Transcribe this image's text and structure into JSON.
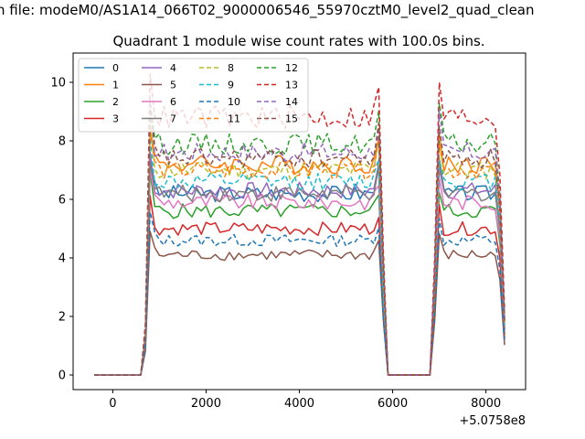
{
  "chart_data": {
    "type": "line",
    "suptitle": "n file: modeM0/AS1A14_066T02_9000006546_55970cztM0_level2_quad_clean",
    "title": "Quadrant 1 module wise count rates with 100.0s bins.",
    "xlabel": "",
    "ylabel": "",
    "x_offset_label": "+5.0758e8",
    "xlim": [
      -850,
      8850
    ],
    "ylim": [
      -0.5,
      11.0
    ],
    "xticks": [
      0,
      2000,
      4000,
      6000,
      8000
    ],
    "xtick_labels": [
      "0",
      "2000",
      "4000",
      "6000",
      "8000"
    ],
    "yticks": [
      0,
      2,
      4,
      6,
      8,
      10
    ],
    "ytick_labels": [
      "0",
      "2",
      "4",
      "6",
      "8",
      "10"
    ],
    "legend": {
      "placement": "top-left",
      "ncol": 4
    },
    "profile": {
      "x": [
        -400,
        -300,
        -200,
        -100,
        0,
        100,
        200,
        300,
        400,
        500,
        600,
        700,
        800,
        900,
        1000,
        1100,
        1200,
        1300,
        1400,
        1500,
        1600,
        1700,
        1800,
        1900,
        2000,
        2100,
        2200,
        2300,
        2400,
        2500,
        2600,
        2700,
        2800,
        2900,
        3000,
        3100,
        3200,
        3300,
        3400,
        3500,
        3600,
        3700,
        3800,
        3900,
        4000,
        4100,
        4200,
        4300,
        4400,
        4500,
        4600,
        4700,
        4800,
        4900,
        5000,
        5100,
        5200,
        5300,
        5400,
        5500,
        5600,
        5700,
        5800,
        5900,
        6000,
        6100,
        6200,
        6300,
        6400,
        6500,
        6600,
        6700,
        6800,
        6900,
        7000,
        7100,
        7200,
        7300,
        7400,
        7500,
        7600,
        7700,
        7800,
        7900,
        8000,
        8100,
        8200,
        8300,
        8400
      ],
      "shape": [
        0,
        0,
        0,
        0,
        0,
        0,
        0,
        0,
        0,
        0,
        0,
        0.2,
        1.18,
        1.0,
        1.0,
        1.0,
        1.0,
        1.0,
        1.0,
        1.0,
        1.0,
        1.0,
        1.0,
        1.0,
        1.0,
        1.0,
        1.0,
        1.0,
        1.0,
        1.0,
        1.0,
        1.0,
        1.0,
        1.0,
        1.0,
        1.0,
        1.0,
        1.0,
        1.0,
        1.0,
        1.0,
        1.0,
        1.0,
        1.0,
        1.0,
        1.0,
        1.0,
        1.0,
        1.0,
        1.0,
        1.0,
        1.0,
        1.0,
        1.0,
        1.0,
        1.0,
        1.0,
        1.0,
        1.0,
        1.0,
        1.02,
        1.12,
        0.45,
        0,
        0,
        0,
        0,
        0,
        0,
        0,
        0,
        0,
        0,
        0.45,
        1.15,
        1.0,
        1.0,
        1.0,
        1.0,
        1.0,
        1.0,
        1.0,
        1.0,
        1.0,
        1.0,
        1.0,
        1.0,
        0.8,
        0.25
      ]
    },
    "series": [
      {
        "name": "0",
        "color": "#1f77b4",
        "dash": false,
        "level": 6.2
      },
      {
        "name": "1",
        "color": "#ff7f0e",
        "dash": false,
        "level": 7.2
      },
      {
        "name": "2",
        "color": "#2ca02c",
        "dash": false,
        "level": 5.6
      },
      {
        "name": "3",
        "color": "#d62728",
        "dash": false,
        "level": 5.0
      },
      {
        "name": "4",
        "color": "#9467bd",
        "dash": false,
        "level": 6.3
      },
      {
        "name": "5",
        "color": "#8c564b",
        "dash": false,
        "level": 4.1
      },
      {
        "name": "6",
        "color": "#e377c2",
        "dash": false,
        "level": 5.9
      },
      {
        "name": "7",
        "color": "#7f7f7f",
        "dash": false,
        "level": 6.2
      },
      {
        "name": "8",
        "color": "#bcbd22",
        "dash": true,
        "level": 7.0
      },
      {
        "name": "9",
        "color": "#17becf",
        "dash": true,
        "level": 6.6
      },
      {
        "name": "10",
        "color": "#1f77b4",
        "dash": true,
        "level": 4.6
      },
      {
        "name": "11",
        "color": "#ff7f0e",
        "dash": true,
        "level": 7.0
      },
      {
        "name": "12",
        "color": "#2ca02c",
        "dash": true,
        "level": 7.9
      },
      {
        "name": "13",
        "color": "#d62728",
        "dash": true,
        "level": 8.8
      },
      {
        "name": "14",
        "color": "#9467bd",
        "dash": true,
        "level": 7.6
      },
      {
        "name": "15",
        "color": "#8c564b",
        "dash": true,
        "level": 7.4
      }
    ]
  }
}
